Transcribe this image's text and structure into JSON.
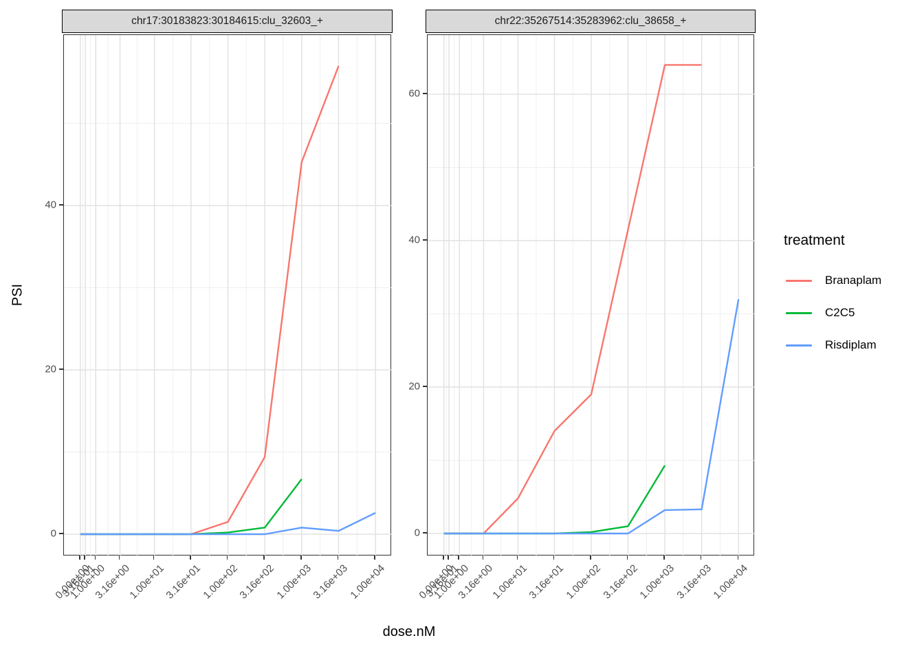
{
  "figure": {
    "x_axis_title": "dose.nM",
    "y_axis_title": "PSI",
    "x_tick_labels": [
      "0.00e+00",
      "3.16e-01",
      "1.00e+00",
      "3.16e+00",
      "1.00e+01",
      "3.16e+01",
      "1.00e+02",
      "3.16e+02",
      "1.00e+03",
      "3.16e+03",
      "1.00e+04"
    ],
    "x_tick_doses": [
      0,
      0.316,
      1,
      3.16,
      10,
      31.6,
      100,
      316,
      1000,
      3160,
      10000
    ]
  },
  "legend": {
    "title": "treatment",
    "items": [
      {
        "label": "Branaplam",
        "color": "#F8766D"
      },
      {
        "label": "C2C5",
        "color": "#00BA38"
      },
      {
        "label": "Risdiplam",
        "color": "#619CFF"
      }
    ]
  },
  "chart_data": [
    {
      "type": "line",
      "facet": "chr17:30183823:30184615:clu_32603_+",
      "xlabel": "dose.nM",
      "ylabel": "PSI",
      "x_scale": "pseudo_log asinh(x/2)/ln(10), range 0..10000, 5% expansion",
      "x_ticks": [
        0,
        0.316,
        1,
        3.16,
        10,
        31.6,
        100,
        316,
        1000,
        3160,
        10000
      ],
      "y_major_ticks": [
        0,
        20,
        40
      ],
      "y_minor_ticks": [
        10,
        30,
        50
      ],
      "ylim": [
        -2.7,
        60.8
      ],
      "grid": true,
      "series": [
        {
          "name": "Branaplam",
          "color": "#F8766D",
          "points": [
            [
              0,
              0
            ],
            [
              0.316,
              0
            ],
            [
              1,
              0
            ],
            [
              3.16,
              0
            ],
            [
              10,
              0
            ],
            [
              31.6,
              0
            ],
            [
              100,
              1.5
            ],
            [
              316,
              9.4
            ],
            [
              1000,
              45.3
            ],
            [
              3160,
              57
            ]
          ]
        },
        {
          "name": "C2C5",
          "color": "#00BA38",
          "points": [
            [
              0,
              0
            ],
            [
              0.316,
              0
            ],
            [
              1,
              0
            ],
            [
              3.16,
              0
            ],
            [
              10,
              0
            ],
            [
              31.6,
              0
            ],
            [
              100,
              0.2
            ],
            [
              316,
              0.8
            ],
            [
              1000,
              6.7
            ]
          ]
        },
        {
          "name": "Risdiplam",
          "color": "#619CFF",
          "points": [
            [
              0,
              0
            ],
            [
              0.316,
              0
            ],
            [
              1,
              0
            ],
            [
              3.16,
              0
            ],
            [
              10,
              0
            ],
            [
              31.6,
              0
            ],
            [
              100,
              0
            ],
            [
              316,
              0
            ],
            [
              1000,
              0.8
            ],
            [
              3160,
              0.4
            ],
            [
              10000,
              2.6
            ]
          ]
        }
      ]
    },
    {
      "type": "line",
      "facet": "chr22:35267514:35283962:clu_38658_+",
      "xlabel": "dose.nM",
      "ylabel": "PSI",
      "x_scale": "pseudo_log asinh(x/2)/ln(10), range 0..10000, 5% expansion",
      "x_ticks": [
        0,
        0.316,
        1,
        3.16,
        10,
        31.6,
        100,
        316,
        1000,
        3160,
        10000
      ],
      "y_major_ticks": [
        0,
        20,
        40,
        60
      ],
      "y_minor_ticks": [
        10,
        30,
        50
      ],
      "ylim": [
        -3.1,
        68.1
      ],
      "grid": true,
      "series": [
        {
          "name": "Branaplam",
          "color": "#F8766D",
          "points": [
            [
              0,
              0
            ],
            [
              0.316,
              0
            ],
            [
              1,
              0
            ],
            [
              3.16,
              0
            ],
            [
              10,
              4.8
            ],
            [
              31.6,
              14
            ],
            [
              100,
              19
            ],
            [
              316,
              41.5
            ],
            [
              1000,
              64
            ],
            [
              3160,
              64
            ]
          ]
        },
        {
          "name": "C2C5",
          "color": "#00BA38",
          "points": [
            [
              0,
              0
            ],
            [
              0.316,
              0
            ],
            [
              1,
              0
            ],
            [
              3.16,
              0
            ],
            [
              10,
              0
            ],
            [
              31.6,
              0
            ],
            [
              100,
              0.2
            ],
            [
              316,
              1
            ],
            [
              1000,
              9.3
            ]
          ]
        },
        {
          "name": "Risdiplam",
          "color": "#619CFF",
          "points": [
            [
              0,
              0
            ],
            [
              0.316,
              0
            ],
            [
              1,
              0
            ],
            [
              3.16,
              0
            ],
            [
              10,
              0
            ],
            [
              31.6,
              0
            ],
            [
              100,
              0
            ],
            [
              316,
              0
            ],
            [
              1000,
              3.2
            ],
            [
              3160,
              3.3
            ],
            [
              10000,
              32
            ]
          ]
        }
      ]
    }
  ]
}
